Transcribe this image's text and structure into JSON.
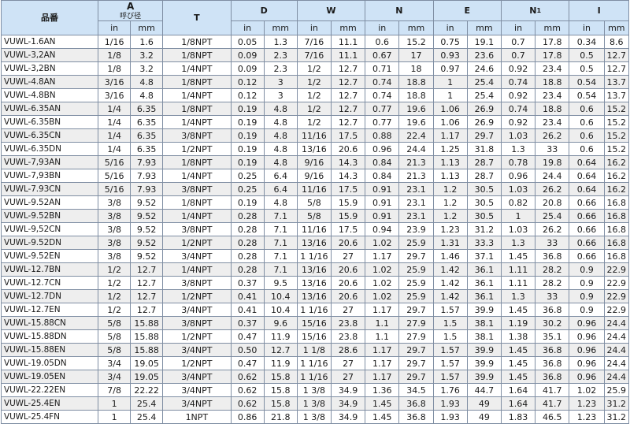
{
  "headers": {
    "part_no": "品番",
    "a": "A",
    "a_sub": "呼び径",
    "t": "T",
    "d": "D",
    "w": "W",
    "n": "N",
    "e": "E",
    "n1": "N",
    "n1_sub": "1",
    "i": "I",
    "in": "in",
    "mm": "mm"
  },
  "rows": [
    [
      "VUWL-1.6AN",
      "1/16",
      "1.6",
      "1/8NPT",
      "0.05",
      "1.3",
      "7/16",
      "11.1",
      "0.6",
      "15.2",
      "0.75",
      "19.1",
      "0.7",
      "17.8",
      "0.34",
      "8.6"
    ],
    [
      "VUWL-3,2AN",
      "1/8",
      "3.2",
      "1/8NPT",
      "0.09",
      "2.3",
      "7/16",
      "11.1",
      "0.67",
      "17",
      "0.93",
      "23.6",
      "0.7",
      "17.8",
      "0.5",
      "12.7"
    ],
    [
      "VUWL-3,2BN",
      "1/8",
      "3.2",
      "1/4NPT",
      "0.09",
      "2.3",
      "1/2",
      "12.7",
      "0.71",
      "18",
      "0.97",
      "24.6",
      "0.92",
      "23.4",
      "0.5",
      "12.7"
    ],
    [
      "VUWL-4.8AN",
      "3/16",
      "4.8",
      "1/8NPT",
      "0.12",
      "3",
      "1/2",
      "12.7",
      "0.74",
      "18.8",
      "1",
      "25.4",
      "0.74",
      "18.8",
      "0.54",
      "13.7"
    ],
    [
      "VUWL-4.8BN",
      "3/16",
      "4.8",
      "1/4NPT",
      "0.12",
      "3",
      "1/2",
      "12.7",
      "0.74",
      "18.8",
      "1",
      "25.4",
      "0.92",
      "23.4",
      "0.54",
      "13.7"
    ],
    [
      "VUWL-6.35AN",
      "1/4",
      "6.35",
      "1/8NPT",
      "0.19",
      "4.8",
      "1/2",
      "12.7",
      "0.77",
      "19.6",
      "1.06",
      "26.9",
      "0.74",
      "18.8",
      "0.6",
      "15.2"
    ],
    [
      "VUWL-6.35BN",
      "1/4",
      "6.35",
      "1/4NPT",
      "0.19",
      "4.8",
      "1/2",
      "12.7",
      "0.77",
      "19.6",
      "1.06",
      "26.9",
      "0.92",
      "23.4",
      "0.6",
      "15.2"
    ],
    [
      "VUWL-6.35CN",
      "1/4",
      "6.35",
      "3/8NPT",
      "0.19",
      "4.8",
      "11/16",
      "17.5",
      "0.88",
      "22.4",
      "1.17",
      "29.7",
      "1.03",
      "26.2",
      "0.6",
      "15.2"
    ],
    [
      "VUWL-6.35DN",
      "1/4",
      "6.35",
      "1/2NPT",
      "0.19",
      "4.8",
      "13/16",
      "20.6",
      "0.96",
      "24.4",
      "1.25",
      "31.8",
      "1.3",
      "33",
      "0.6",
      "15.2"
    ],
    [
      "VUWL-7,93AN",
      "5/16",
      "7.93",
      "1/8NPT",
      "0.19",
      "4.8",
      "9/16",
      "14.3",
      "0.84",
      "21.3",
      "1.13",
      "28.7",
      "0.78",
      "19.8",
      "0.64",
      "16.2"
    ],
    [
      "VUWL-7,93BN",
      "5/16",
      "7.93",
      "1/4NPT",
      "0.25",
      "6.4",
      "9/16",
      "14.3",
      "0.84",
      "21.3",
      "1.13",
      "28.7",
      "0.96",
      "24.4",
      "0.64",
      "16.2"
    ],
    [
      "VUWL-7.93CN",
      "5/16",
      "7.93",
      "3/8NPT",
      "0.25",
      "6.4",
      "11/16",
      "17.5",
      "0.91",
      "23.1",
      "1.2",
      "30.5",
      "1.03",
      "26.2",
      "0.64",
      "16.2"
    ],
    [
      "VUWL-9.52AN",
      "3/8",
      "9.52",
      "1/8NPT",
      "0.19",
      "4.8",
      "5/8",
      "15.9",
      "0.91",
      "23.1",
      "1.2",
      "30.5",
      "0.82",
      "20.8",
      "0.66",
      "16.8"
    ],
    [
      "VUWL-9.52BN",
      "3/8",
      "9.52",
      "1/4NPT",
      "0.28",
      "7.1",
      "5/8",
      "15.9",
      "0.91",
      "23.1",
      "1.2",
      "30.5",
      "1",
      "25.4",
      "0.66",
      "16.8"
    ],
    [
      "VUWL-9,52CN",
      "3/8",
      "9.52",
      "3/8NPT",
      "0.28",
      "7.1",
      "11/16",
      "17.5",
      "0.94",
      "23.9",
      "1.23",
      "31.2",
      "1.03",
      "26.2",
      "0.66",
      "16.8"
    ],
    [
      "VUWL-9.52DN",
      "3/8",
      "9.52",
      "1/2NPT",
      "0.28",
      "7.1",
      "13/16",
      "20.6",
      "1.02",
      "25.9",
      "1.31",
      "33.3",
      "1.3",
      "33",
      "0.66",
      "16.8"
    ],
    [
      "VUWL-9.52EN",
      "3/8",
      "9.52",
      "3/4NPT",
      "0.28",
      "7.1",
      "1 1/16",
      "27",
      "1.17",
      "29.7",
      "1.46",
      "37.1",
      "1.45",
      "36.8",
      "0.66",
      "16.8"
    ],
    [
      "VUWL-12.7BN",
      "1/2",
      "12.7",
      "1/4NPT",
      "0.28",
      "7.1",
      "13/16",
      "20.6",
      "1.02",
      "25.9",
      "1.42",
      "36.1",
      "1.11",
      "28.2",
      "0.9",
      "22.9"
    ],
    [
      "VUWL-12.7CN",
      "1/2",
      "12.7",
      "3/8NPT",
      "0.37",
      "9.5",
      "13/16",
      "20.6",
      "1.02",
      "25.9",
      "1.42",
      "36.1",
      "1.11",
      "28.2",
      "0.9",
      "22.9"
    ],
    [
      "VUWL-12.7DN",
      "1/2",
      "12.7",
      "1/2NPT",
      "0.41",
      "10.4",
      "13/16",
      "20.6",
      "1.02",
      "25.9",
      "1.42",
      "36.1",
      "1.3",
      "33",
      "0.9",
      "22.9"
    ],
    [
      "VUWL-12.7EN",
      "1/2",
      "12.7",
      "3/4NPT",
      "0.41",
      "10.4",
      "1 1/16",
      "27",
      "1.17",
      "29.7",
      "1.57",
      "39.9",
      "1.45",
      "36.8",
      "0.9",
      "22.9"
    ],
    [
      "VUWL-15.88CN",
      "5/8",
      "15.88",
      "3/8NPT",
      "0.37",
      "9.6",
      "15/16",
      "23.8",
      "1.1",
      "27.9",
      "1.5",
      "38.1",
      "1.19",
      "30.2",
      "0.96",
      "24.4"
    ],
    [
      "VUWL-15.88DN",
      "5/8",
      "15.88",
      "1/2NPT",
      "0.47",
      "11.9",
      "15/16",
      "23.8",
      "1.1",
      "27.9",
      "1.5",
      "38.1",
      "1.38",
      "35.1",
      "0.96",
      "24.4"
    ],
    [
      "VUWL-15.88EN",
      "5/8",
      "15.88",
      "3/4NPT",
      "0.50",
      "12.7",
      "1 1/8",
      "28.6",
      "1.17",
      "29.7",
      "1.57",
      "39.9",
      "1.45",
      "36.8",
      "0.96",
      "24.4"
    ],
    [
      "VUWL-19.05DN",
      "3/4",
      "19.05",
      "1/2NPT",
      "0.47",
      "11.9",
      "1 1/16",
      "27",
      "1.17",
      "29.7",
      "1.57",
      "39.9",
      "1.45",
      "36.8",
      "0.96",
      "24.4"
    ],
    [
      "VUWL-19.05EN",
      "3/4",
      "19.05",
      "3/4NPT",
      "0.62",
      "15.8",
      "1 1/16",
      "27",
      "1.17",
      "29.7",
      "1.57",
      "39.9",
      "1.45",
      "36.8",
      "0.96",
      "24.4"
    ],
    [
      "VUWL-22.22EN",
      "7/8",
      "22.22",
      "3/4NPT",
      "0.62",
      "15.8",
      "1 3/8",
      "34.9",
      "1.36",
      "34.5",
      "1.76",
      "44.7",
      "1.64",
      "41.7",
      "1.02",
      "25.9"
    ],
    [
      "VUWL-25.4EN",
      "1",
      "25.4",
      "3/4NPT",
      "0.62",
      "15.8",
      "1 3/8",
      "34.9",
      "1.45",
      "36.8",
      "1.93",
      "49",
      "1.64",
      "41.7",
      "1.23",
      "31.2"
    ],
    [
      "VUWL-25.4FN",
      "1",
      "25.4",
      "1NPT",
      "0.86",
      "21.8",
      "1 3/8",
      "34.9",
      "1.45",
      "36.8",
      "1.93",
      "49",
      "1.83",
      "46.5",
      "1.23",
      "31.2"
    ]
  ]
}
